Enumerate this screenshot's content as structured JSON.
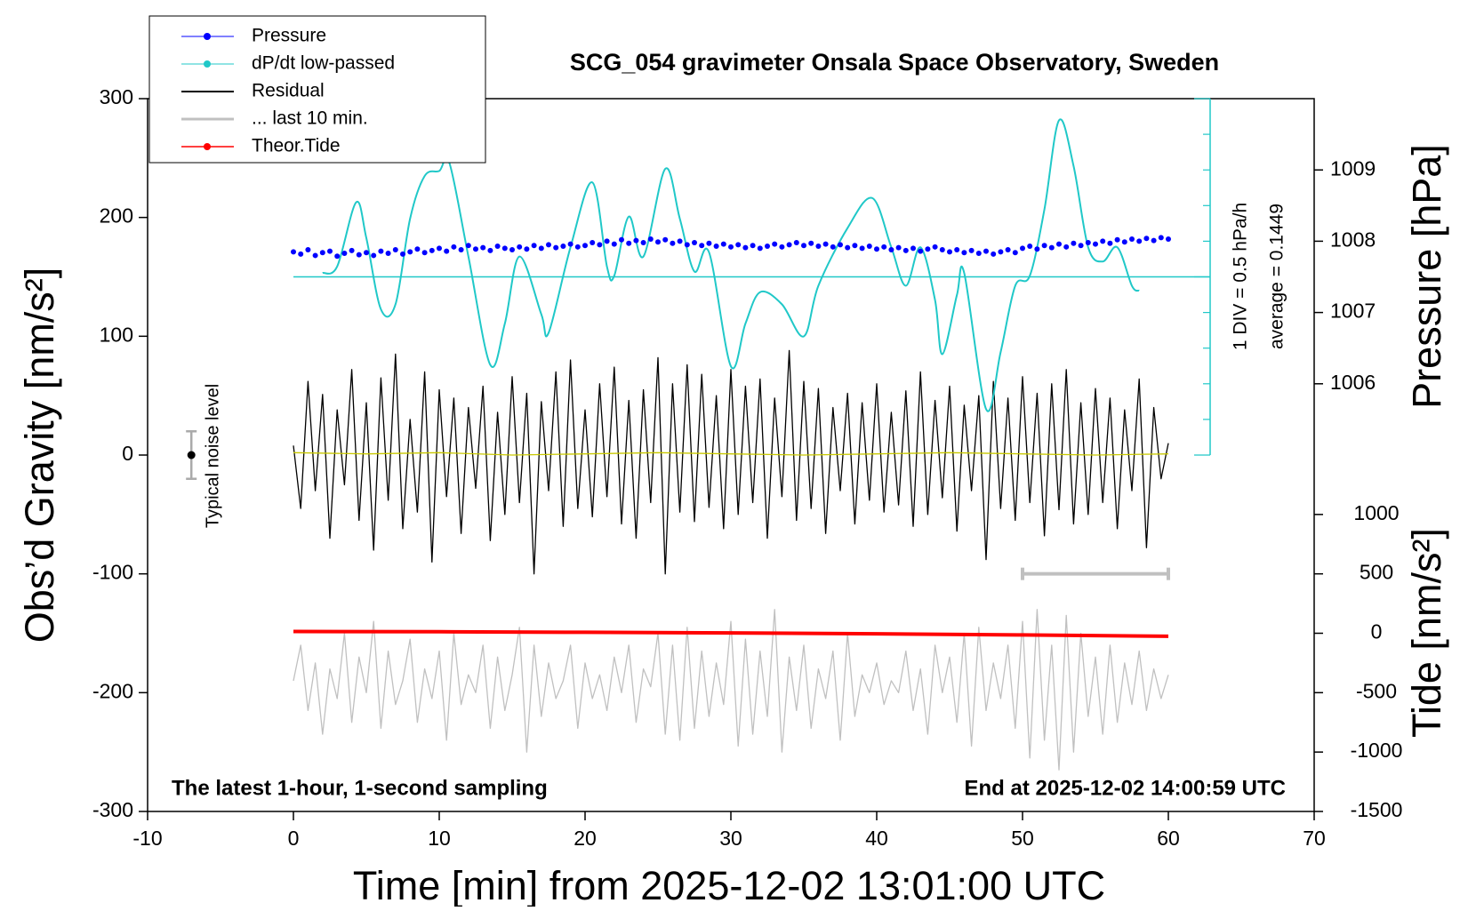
{
  "chart_data": {
    "type": "line",
    "title": "SCG_054 gravimeter Onsala Space Observatory, Sweden",
    "xlabel": "Time [min] from 2025-12-02 13:01:00 UTC",
    "ylabel": "Obs’d Gravity [nm/s²]",
    "y2label": "Pressure [hPa]",
    "y3label": "Tide [nm/s²]",
    "note_left": "The latest 1-hour, 1-second sampling",
    "note_right": "End at 2025-12-02 14:00:59 UTC",
    "xlim": [
      -10,
      70
    ],
    "xticks": [
      -10,
      0,
      10,
      20,
      30,
      40,
      50,
      60,
      70
    ],
    "ylim": [
      -300,
      300
    ],
    "yticks": [
      -300,
      -200,
      -100,
      0,
      100,
      200,
      300
    ],
    "y2lim": [
      1000,
      1010
    ],
    "y2ticks": [
      1006,
      1007,
      1008,
      1009
    ],
    "y3lim": [
      -1500,
      4500
    ],
    "y3ticks": [
      -1500,
      -1000,
      -500,
      0,
      500,
      1000
    ],
    "dpdt_div": {
      "value": 0.5,
      "label": "1 DIV = 0.5 hPa/h"
    },
    "dpdt_average": {
      "value": 0.1449,
      "label": "average = 0.1449"
    },
    "noise_level": {
      "label": "Typical noise level",
      "x": -7,
      "value": 0,
      "error": 20
    },
    "interval": {
      "x": [
        50,
        60
      ],
      "y": -100
    },
    "x": [
      0,
      0.5,
      1,
      1.5,
      2,
      2.5,
      3,
      3.5,
      4,
      4.5,
      5,
      5.5,
      6,
      6.5,
      7,
      7.5,
      8,
      8.5,
      9,
      9.5,
      10,
      10.5,
      11,
      11.5,
      12,
      12.5,
      13,
      13.5,
      14,
      14.5,
      15,
      15.5,
      16,
      16.5,
      17,
      17.5,
      18,
      18.5,
      19,
      19.5,
      20,
      20.5,
      21,
      21.5,
      22,
      22.5,
      23,
      23.5,
      24,
      24.5,
      25,
      25.5,
      26,
      26.5,
      27,
      27.5,
      28,
      28.5,
      29,
      29.5,
      30,
      30.5,
      31,
      31.5,
      32,
      32.5,
      33,
      33.5,
      34,
      34.5,
      35,
      35.5,
      36,
      36.5,
      37,
      37.5,
      38,
      38.5,
      39,
      39.5,
      40,
      40.5,
      41,
      41.5,
      42,
      42.5,
      43,
      43.5,
      44,
      44.5,
      45,
      45.5,
      46,
      46.5,
      47,
      47.5,
      48,
      48.5,
      49,
      49.5,
      50,
      50.5,
      51,
      51.5,
      52,
      52.5,
      53,
      53.5,
      54,
      54.5,
      55,
      55.5,
      56,
      56.5,
      57,
      57.5,
      58,
      58.5,
      59,
      59.5,
      60
    ],
    "series": [
      {
        "name": "Pressure",
        "color": "#0000ff",
        "axis": "y2",
        "style": "dots",
        "values": [
          1007.85,
          1007.82,
          1007.88,
          1007.8,
          1007.84,
          1007.86,
          1007.79,
          1007.83,
          1007.87,
          1007.81,
          1007.84,
          1007.8,
          1007.86,
          1007.83,
          1007.88,
          1007.82,
          1007.85,
          1007.89,
          1007.84,
          1007.87,
          1007.9,
          1007.86,
          1007.92,
          1007.88,
          1007.94,
          1007.89,
          1007.91,
          1007.87,
          1007.93,
          1007.9,
          1007.88,
          1007.92,
          1007.89,
          1007.94,
          1007.9,
          1007.95,
          1007.91,
          1007.93,
          1007.96,
          1007.92,
          1007.94,
          1007.98,
          1007.95,
          1008.0,
          1007.96,
          1008.02,
          1007.97,
          1008.01,
          1007.98,
          1008.03,
          1007.99,
          1008.02,
          1007.97,
          1008.0,
          1007.95,
          1007.98,
          1007.94,
          1007.97,
          1007.93,
          1007.96,
          1007.92,
          1007.95,
          1007.91,
          1007.94,
          1007.9,
          1007.93,
          1007.96,
          1007.92,
          1007.95,
          1007.98,
          1007.94,
          1007.97,
          1007.93,
          1007.96,
          1007.92,
          1007.95,
          1007.91,
          1007.94,
          1007.9,
          1007.93,
          1007.89,
          1007.92,
          1007.88,
          1007.91,
          1007.87,
          1007.9,
          1007.86,
          1007.89,
          1007.92,
          1007.88,
          1007.85,
          1007.88,
          1007.84,
          1007.87,
          1007.83,
          1007.86,
          1007.82,
          1007.85,
          1007.88,
          1007.84,
          1007.9,
          1007.93,
          1007.89,
          1007.94,
          1007.91,
          1007.96,
          1007.92,
          1007.97,
          1007.94,
          1007.98,
          1007.96,
          1008.0,
          1007.97,
          1008.02,
          1007.99,
          1008.03,
          1008.0,
          1008.04,
          1008.01,
          1008.05,
          1008.03
        ]
      },
      {
        "name": "dP/dt low-passed",
        "color": "#20c8c8",
        "axis": "dpdt",
        "style": "smooth",
        "x": [
          2,
          3,
          4.3,
          5,
          6,
          7,
          8,
          9,
          10,
          10.7,
          12,
          13.5,
          14.5,
          15.5,
          17,
          17.5,
          19,
          20.5,
          21.5,
          22,
          23,
          24,
          25.5,
          26.5,
          27.5,
          28.5,
          30,
          31,
          32,
          33.5,
          35,
          36,
          38,
          39.7,
          41,
          42,
          43,
          44,
          44.5,
          45.5,
          46,
          47.5,
          48.5,
          49.5,
          50.5,
          51.5,
          52.5,
          53.5,
          54.5,
          55.5,
          56.5,
          57.5,
          58
        ],
        "values": [
          0.2,
          0.29,
          1.19,
          0.69,
          -0.31,
          -0.24,
          0.96,
          1.56,
          1.63,
          1.74,
          0.43,
          -1.09,
          -0.51,
          0.43,
          -0.38,
          -0.64,
          0.56,
          1.47,
          0.29,
          0.16,
          0.99,
          0.43,
          1.66,
          0.96,
          0.22,
          0.49,
          -1.11,
          -0.51,
          -0.07,
          -0.24,
          -0.69,
          0.02,
          0.83,
          1.25,
          0.56,
          0.02,
          0.56,
          -0.18,
          -0.94,
          -0.11,
          0.2,
          -1.71,
          -0.91,
          0.02,
          0.16,
          1.09,
          2.34,
          1.7,
          0.56,
          0.36,
          0.56,
          0.02,
          -0.05
        ]
      },
      {
        "name": "Residual",
        "color": "#000000",
        "axis": "y",
        "style": "line",
        "values": [
          8,
          -45,
          62,
          -30,
          51,
          -70,
          38,
          -25,
          72,
          -55,
          44,
          -80,
          65,
          -38,
          85,
          -62,
          30,
          -48,
          70,
          -90,
          55,
          -35,
          48,
          -66,
          40,
          -28,
          58,
          -72,
          36,
          -50,
          66,
          -40,
          52,
          -100,
          45,
          -30,
          70,
          -60,
          80,
          -45,
          38,
          -52,
          60,
          -35,
          74,
          -58,
          46,
          -70,
          55,
          -40,
          82,
          -100,
          60,
          -48,
          76,
          -56,
          68,
          -44,
          50,
          -62,
          72,
          -50,
          58,
          -40,
          64,
          -70,
          48,
          -35,
          88,
          -55,
          62,
          -45,
          56,
          -66,
          40,
          -30,
          52,
          -58,
          44,
          -38,
          60,
          -48,
          36,
          -42,
          54,
          -60,
          70,
          -50,
          46,
          -36,
          58,
          -64,
          42,
          -30,
          50,
          -88,
          62,
          -45,
          48,
          -55,
          66,
          -40,
          52,
          -68,
          60,
          -46,
          72,
          -58,
          44,
          -50,
          56,
          -40,
          48,
          -62,
          38,
          -30,
          64,
          -78,
          40,
          -20,
          10
        ]
      },
      {
        "name": "... last 10 min.",
        "color": "#c0c0c0",
        "axis": "y",
        "style": "line",
        "values": [
          -190,
          -160,
          -215,
          -175,
          -235,
          -180,
          -205,
          -150,
          -225,
          -170,
          -200,
          -140,
          -230,
          -165,
          -210,
          -190,
          -155,
          -225,
          -180,
          -205,
          -165,
          -240,
          -150,
          -210,
          -185,
          -200,
          -160,
          -230,
          -170,
          -215,
          -185,
          -145,
          -250,
          -160,
          -220,
          -175,
          -205,
          -190,
          -160,
          -230,
          -175,
          -205,
          -185,
          -215,
          -170,
          -200,
          -160,
          -225,
          -180,
          -195,
          -150,
          -235,
          -160,
          -240,
          -145,
          -230,
          -165,
          -220,
          -175,
          -210,
          -140,
          -245,
          -155,
          -235,
          -165,
          -220,
          -130,
          -250,
          -170,
          -215,
          -160,
          -230,
          -180,
          -205,
          -165,
          -240,
          -150,
          -220,
          -185,
          -200,
          -175,
          -210,
          -190,
          -200,
          -165,
          -215,
          -180,
          -235,
          -160,
          -200,
          -170,
          -225,
          -150,
          -245,
          -145,
          -215,
          -175,
          -205,
          -160,
          -230,
          -140,
          -255,
          -130,
          -240,
          -160,
          -265,
          -135,
          -250,
          -150,
          -220,
          -170,
          -235,
          -160,
          -225,
          -175,
          -210,
          -165,
          -215,
          -180,
          -205,
          -185
        ]
      },
      {
        "name": "Theor.Tide",
        "color": "#ff0000",
        "axis": "y3",
        "style": "thick",
        "x": [
          0,
          10,
          20,
          30,
          40,
          50,
          60
        ],
        "values": [
          15,
          13,
          8,
          3,
          -5,
          -14,
          -25
        ]
      },
      {
        "color": "#c8c800",
        "axis": "y",
        "style": "line",
        "x": [
          0,
          5,
          10,
          15,
          20,
          25,
          30,
          35,
          40,
          45,
          50,
          55,
          60
        ],
        "values": [
          2,
          1,
          2,
          0,
          1,
          2,
          1,
          0,
          1,
          2,
          1,
          0,
          1
        ]
      }
    ]
  }
}
